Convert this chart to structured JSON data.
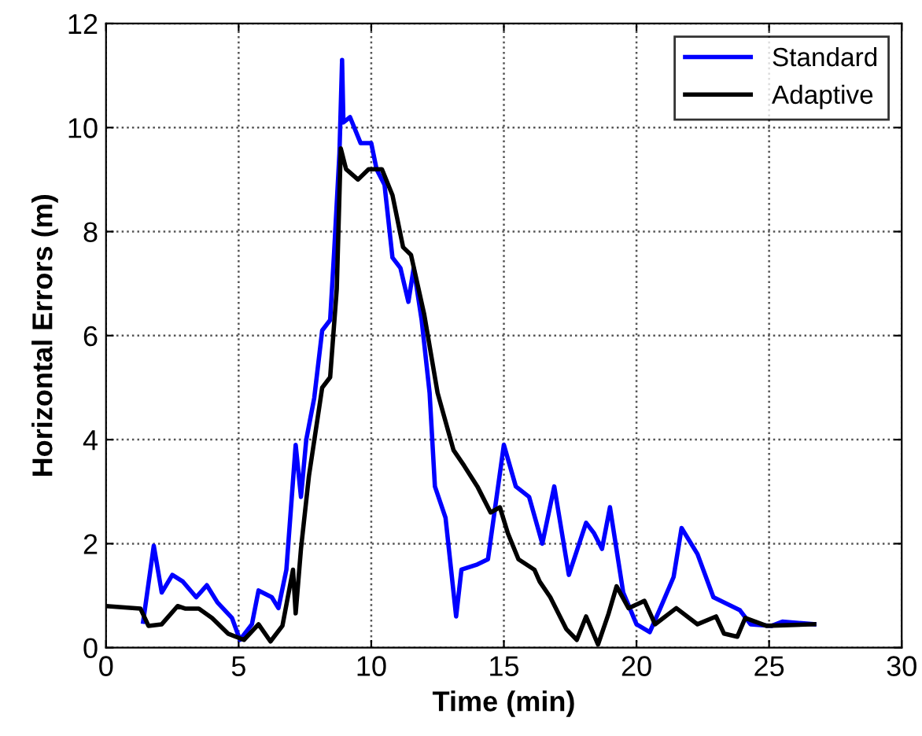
{
  "chart_data": {
    "type": "line",
    "xlabel": "Time (min)",
    "ylabel": "Horizontal Errors (m)",
    "xlim": [
      0,
      30
    ],
    "ylim": [
      0,
      12
    ],
    "xticks": [
      0,
      5,
      10,
      15,
      20,
      25,
      30
    ],
    "yticks": [
      0,
      2,
      4,
      6,
      8,
      10,
      12
    ],
    "grid": true,
    "legend": "top right",
    "line_style": "solid",
    "marker": "none",
    "series": [
      {
        "name": "Standard",
        "color": "#0000ff",
        "x": [
          1.4,
          1.8,
          2.1,
          2.5,
          2.9,
          3.4,
          3.8,
          4.2,
          4.75,
          5.05,
          5.5,
          5.75,
          6.25,
          6.5,
          6.8,
          7.15,
          7.35,
          7.55,
          7.85,
          8.15,
          8.45,
          8.6,
          8.8,
          8.9,
          8.95,
          9.2,
          9.6,
          10.0,
          10.2,
          10.5,
          10.8,
          11.1,
          11.4,
          11.6,
          11.9,
          12.2,
          12.4,
          12.8,
          13.2,
          13.4,
          14.0,
          14.4,
          15.0,
          15.45,
          15.95,
          16.45,
          16.9,
          17.45,
          18.1,
          18.4,
          18.7,
          19.0,
          19.5,
          20.0,
          20.5,
          20.9,
          21.4,
          21.7,
          22.3,
          22.9,
          23.9,
          24.3,
          25.1,
          25.5,
          26.7
        ],
        "values": [
          0.5,
          1.96,
          1.06,
          1.4,
          1.27,
          0.97,
          1.2,
          0.87,
          0.57,
          0.15,
          0.45,
          1.1,
          0.97,
          0.76,
          1.5,
          3.9,
          2.9,
          4.0,
          4.8,
          6.1,
          6.3,
          7.6,
          9.5,
          11.3,
          10.1,
          10.2,
          9.7,
          9.7,
          9.2,
          8.9,
          7.5,
          7.3,
          6.65,
          7.3,
          6.3,
          4.9,
          3.1,
          2.5,
          0.6,
          1.5,
          1.6,
          1.7,
          3.9,
          3.1,
          2.9,
          2.0,
          3.1,
          1.4,
          2.4,
          2.2,
          1.9,
          2.7,
          1.06,
          0.45,
          0.3,
          0.76,
          1.36,
          2.3,
          1.8,
          0.97,
          0.72,
          0.45,
          0.42,
          0.5,
          0.45
        ]
      },
      {
        "name": "Adaptive",
        "color": "#000000",
        "x": [
          0,
          1.3,
          1.6,
          2.1,
          2.7,
          3.0,
          3.5,
          4.0,
          4.6,
          5.2,
          5.75,
          6.2,
          6.65,
          7.05,
          7.15,
          7.35,
          7.65,
          8.15,
          8.45,
          8.7,
          8.85,
          9.05,
          9.5,
          9.9,
          10.4,
          10.8,
          11.2,
          11.5,
          12.0,
          12.5,
          13.1,
          13.5,
          14.0,
          14.5,
          14.85,
          15.15,
          15.55,
          16.15,
          16.35,
          16.75,
          17.35,
          17.75,
          18.1,
          18.55,
          18.95,
          19.25,
          19.7,
          20.3,
          20.7,
          21.5,
          22.3,
          23.0,
          23.3,
          23.8,
          24.1,
          24.9,
          26.7
        ],
        "values": [
          0.8,
          0.75,
          0.42,
          0.45,
          0.8,
          0.75,
          0.75,
          0.57,
          0.27,
          0.15,
          0.45,
          0.12,
          0.42,
          1.5,
          0.66,
          1.9,
          3.3,
          5.0,
          5.2,
          6.9,
          9.6,
          9.2,
          9.0,
          9.2,
          9.2,
          8.7,
          7.7,
          7.55,
          6.4,
          4.9,
          3.8,
          3.5,
          3.1,
          2.6,
          2.7,
          2.2,
          1.7,
          1.5,
          1.27,
          0.97,
          0.36,
          0.15,
          0.6,
          0.06,
          0.66,
          1.18,
          0.76,
          0.9,
          0.45,
          0.76,
          0.45,
          0.6,
          0.27,
          0.21,
          0.57,
          0.42,
          0.45
        ]
      }
    ]
  }
}
